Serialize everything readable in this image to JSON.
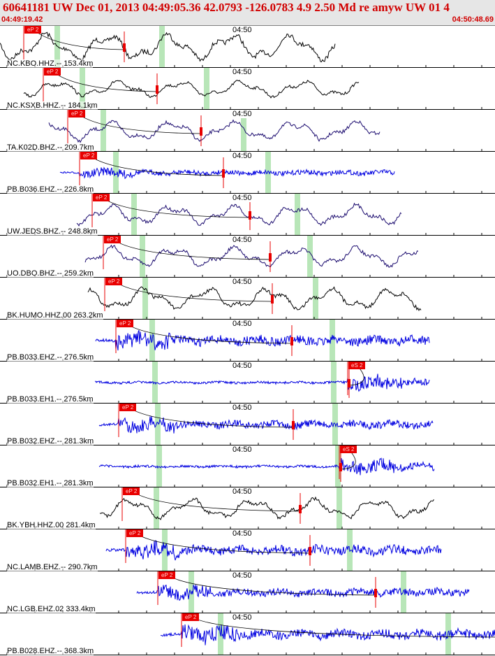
{
  "header": {
    "title": "60641181 UW Dec 01, 2013 04:49:05.36   42.0793 -126.0783  4.9 2.50 Md re amyw UW 01   4",
    "time_start": "04:49:19.42",
    "time_end": "04:50:48.69",
    "colors": {
      "title": "#d10000",
      "background": "#e6e6e6"
    }
  },
  "panels": [
    {
      "label": "NC.KBO.HHZ.-- 153.4km",
      "minute": "04:50",
      "pick": "eP 2",
      "trace_color": "#000000",
      "amp": 0.75,
      "kind": "low"
    },
    {
      "label": "NC.KSXB.HHZ.-- 184.1km",
      "minute": "04:50",
      "pick": "eP 2",
      "trace_color": "#000000",
      "amp": 0.45,
      "kind": "low"
    },
    {
      "label": "TA.K02D.BHZ.-- 209.7km",
      "minute": "04:50",
      "pick": "eP 2",
      "trace_color": "#1a0a6e",
      "amp": 0.55,
      "kind": "low"
    },
    {
      "label": "PB.B036.EHZ.-- 226.8km",
      "minute": "04:50",
      "pick": "eP 2",
      "trace_color": "#0000e0",
      "amp": 0.3,
      "kind": "high"
    },
    {
      "label": "UW.JEDS.BHZ.-- 248.8km",
      "minute": "04:50",
      "pick": "eP 2",
      "trace_color": "#1a0a6e",
      "amp": 0.55,
      "kind": "low"
    },
    {
      "label": "UO.DBO.BHZ.-- 259.2km",
      "minute": "04:50",
      "pick": "eP 2",
      "trace_color": "#1a0a6e",
      "amp": 0.55,
      "kind": "low"
    },
    {
      "label": "BK.HUMO.HHZ.00 263.2km",
      "minute": "04:50",
      "pick": "eP 2",
      "trace_color": "#000000",
      "amp": 0.6,
      "kind": "low"
    },
    {
      "label": "PB.B033.EHZ.-- 276.5km",
      "minute": "04:50",
      "pick": "eP 2",
      "trace_color": "#0000e0",
      "amp": 0.55,
      "kind": "high"
    },
    {
      "label": "PB.B033.EH1.-- 276.5km",
      "minute": "04:50",
      "pick": "eS 2",
      "trace_color": "#0000e0",
      "amp": 0.45,
      "kind": "high"
    },
    {
      "label": "PB.B032.EHZ.-- 281.3km",
      "minute": "04:50",
      "pick": "eP 2",
      "trace_color": "#0000e0",
      "amp": 0.45,
      "kind": "high"
    },
    {
      "label": "PB.B032.EH1.-- 281.3km",
      "minute": "04:50",
      "pick": "eS 2",
      "trace_color": "#0000e0",
      "amp": 0.45,
      "kind": "high"
    },
    {
      "label": "BK.YBH.HHZ.00 281.4km",
      "minute": "04:50",
      "pick": "eP 2",
      "trace_color": "#000000",
      "amp": 0.55,
      "kind": "low"
    },
    {
      "label": "NC.LAMB.EHZ.-- 290.7km",
      "minute": "04:50",
      "pick": "eP 2",
      "trace_color": "#0000e0",
      "amp": 0.55,
      "kind": "high"
    },
    {
      "label": "NC.LGB.EHZ.02 333.4km",
      "minute": "04:50",
      "pick": "eP 2",
      "trace_color": "#0000e0",
      "amp": 0.45,
      "kind": "high"
    },
    {
      "label": "PB.B028.EHZ.-- 368.3km",
      "minute": "04:50",
      "pick": "eP 2",
      "trace_color": "#0000e0",
      "amp": 0.55,
      "kind": "high"
    }
  ],
  "colors": {
    "pick_flag": "#e80000",
    "window_band": "#b8e6b8",
    "coda_curve": "#000000"
  }
}
